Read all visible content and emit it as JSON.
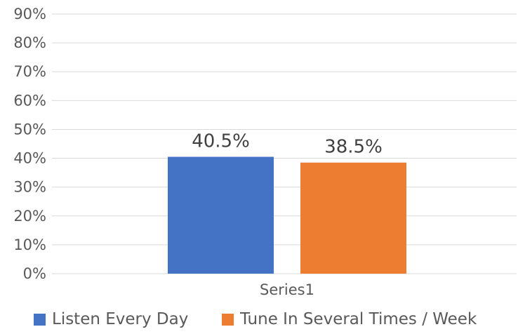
{
  "chart_data": {
    "type": "bar",
    "categories": [
      "Series1"
    ],
    "series": [
      {
        "name": "Listen Every Day",
        "values": [
          40.5
        ],
        "label": "40.5%",
        "color": "#4472C4"
      },
      {
        "name": "Tune In Several Times / Week",
        "values": [
          38.5
        ],
        "label": "38.5%",
        "color": "#ED7D31"
      }
    ],
    "ylim": [
      0,
      90
    ],
    "yticks": [
      0,
      10,
      20,
      30,
      40,
      50,
      60,
      70,
      80,
      90
    ],
    "ytick_labels": [
      "0%",
      "10%",
      "20%",
      "30%",
      "40%",
      "50%",
      "60%",
      "70%",
      "80%",
      "90%"
    ],
    "grid": true,
    "legend_position": "bottom"
  }
}
